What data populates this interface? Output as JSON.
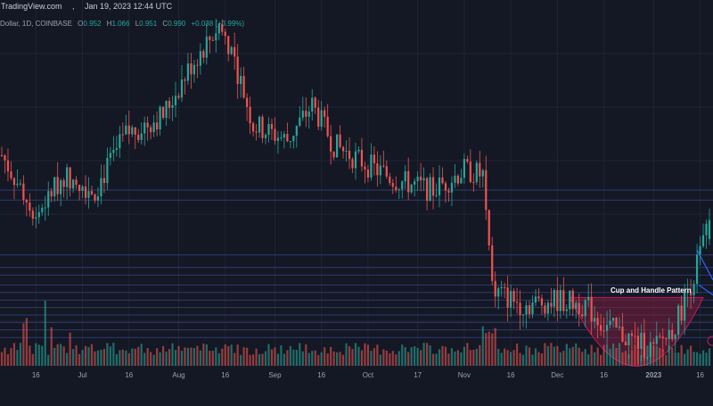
{
  "header": {
    "source": "TradingView.com",
    "timestamp": "Jan 19, 2023 12:44 UTC"
  },
  "legend": {
    "symbol": "Dollar, 1D, COINBASE",
    "open_label": "O",
    "open_value": "0.952",
    "high_label": "H",
    "high_value": "1.066",
    "low_label": "L",
    "low_value": "0.951",
    "close_label": "C",
    "close_value": "0.990",
    "change": "+0.038 (+3.99%)"
  },
  "colors": {
    "background": "#141824",
    "up": "#26a69a",
    "down": "#ef5350",
    "grid": "#1f2433",
    "level_line": "#2d3a6e",
    "cup_fill": "#7a1f3d",
    "cup_stroke": "#c2185b",
    "wedge": "#2962ff",
    "axis_text": "#9aa0ac"
  },
  "annotations": {
    "pattern_label": "Cup and Handle Pattern"
  },
  "chart_data": {
    "type": "candlestick",
    "x_tick_labels": [
      "16",
      "Jul",
      "16",
      "Aug",
      "16",
      "Sep",
      "16",
      "Oct",
      "17",
      "Nov",
      "16",
      "Dec",
      "16",
      "2023",
      "16"
    ],
    "price_anchors": [
      {
        "date": "2022-06-05",
        "close": 1.12
      },
      {
        "date": "2022-06-16",
        "close": 1.0
      },
      {
        "date": "2022-06-25",
        "close": 1.08
      },
      {
        "date": "2022-07-05",
        "close": 1.05
      },
      {
        "date": "2022-07-15",
        "close": 1.16
      },
      {
        "date": "2022-07-27",
        "close": 1.2
      },
      {
        "date": "2022-08-05",
        "close": 1.3
      },
      {
        "date": "2022-08-14",
        "close": 1.38
      },
      {
        "date": "2022-08-18",
        "close": 1.33
      },
      {
        "date": "2022-08-25",
        "close": 1.18
      },
      {
        "date": "2022-09-05",
        "close": 1.15
      },
      {
        "date": "2022-09-13",
        "close": 1.22
      },
      {
        "date": "2022-09-20",
        "close": 1.14
      },
      {
        "date": "2022-10-01",
        "close": 1.1
      },
      {
        "date": "2022-10-10",
        "close": 1.07
      },
      {
        "date": "2022-10-22",
        "close": 1.05
      },
      {
        "date": "2022-11-01",
        "close": 1.09
      },
      {
        "date": "2022-11-07",
        "close": 1.08
      },
      {
        "date": "2022-11-10",
        "close": 0.85
      },
      {
        "date": "2022-11-20",
        "close": 0.82
      },
      {
        "date": "2022-12-01",
        "close": 0.83
      },
      {
        "date": "2022-12-10",
        "close": 0.82
      },
      {
        "date": "2022-12-16",
        "close": 0.78
      },
      {
        "date": "2022-12-25",
        "close": 0.75
      },
      {
        "date": "2023-01-01",
        "close": 0.73
      },
      {
        "date": "2023-01-08",
        "close": 0.78
      },
      {
        "date": "2023-01-14",
        "close": 0.88
      },
      {
        "date": "2023-01-19",
        "close": 0.99
      }
    ],
    "horizontal_levels": [
      1.05,
      1.03,
      0.92,
      0.895,
      0.88,
      0.86,
      0.845,
      0.83,
      0.815,
      0.8,
      0.785,
      0.77,
      0.755
    ],
    "pattern": "Cup and Handle Pattern",
    "grid": true
  }
}
